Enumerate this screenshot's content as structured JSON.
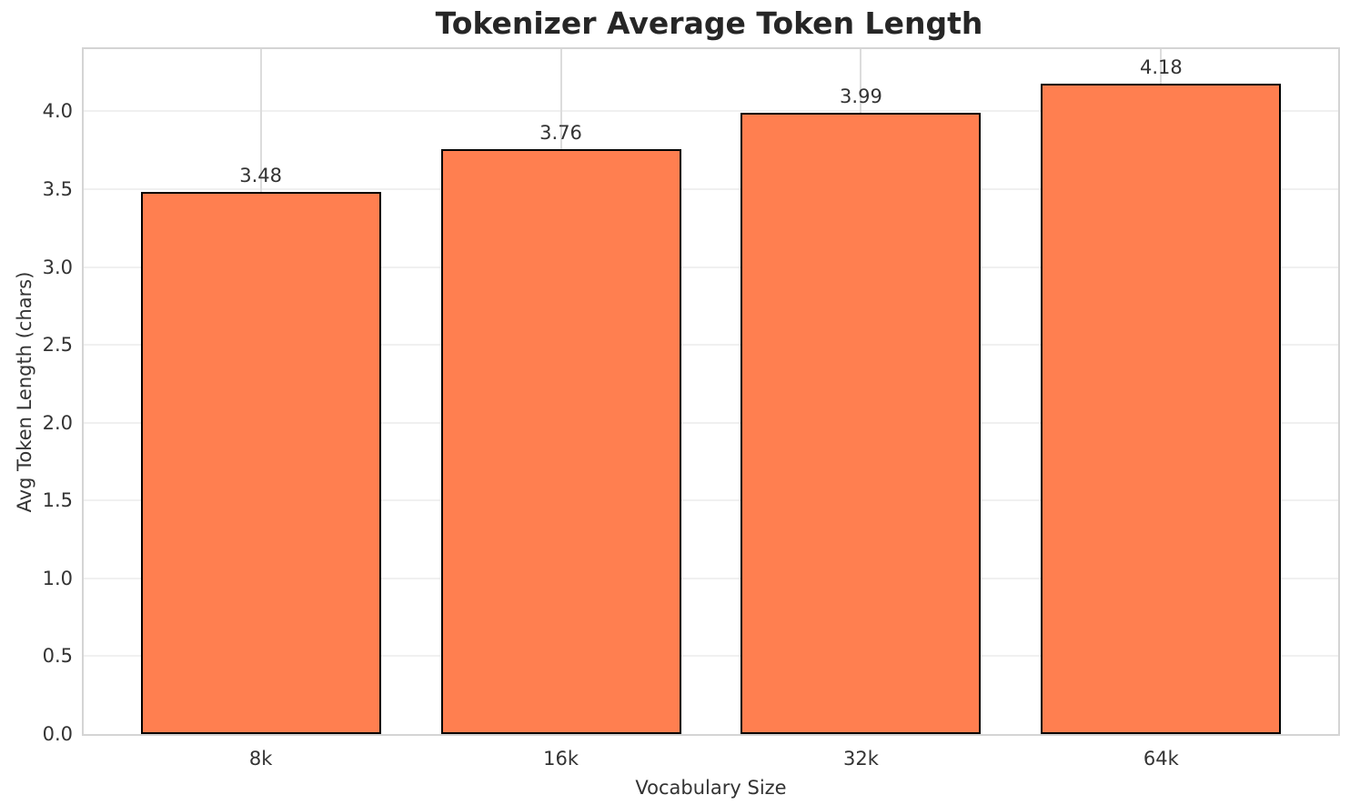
{
  "chart_data": {
    "type": "bar",
    "title": "Tokenizer Average Token Length",
    "categories": [
      "8k",
      "16k",
      "32k",
      "64k"
    ],
    "values": [
      3.48,
      3.76,
      3.99,
      4.18
    ],
    "value_labels": [
      "3.48",
      "3.76",
      "3.99",
      "4.18"
    ],
    "xlabel": "Vocabulary Size",
    "ylabel": "Avg Token Length (chars)",
    "xlim": [
      -0.59,
      3.59
    ],
    "ylim": [
      0,
      4.4
    ],
    "yticks": [
      0,
      0.5,
      1,
      1.5,
      2,
      2.5,
      3,
      3.5,
      4
    ],
    "ytick_labels": [
      "0.0",
      "0.5",
      "1.0",
      "1.5",
      "2.0",
      "2.5",
      "3.0",
      "3.5",
      "4.0"
    ],
    "bar_width": 0.8,
    "bar_color": "#FF7F50",
    "bar_edge_color": "#000000",
    "grid": "both",
    "legend": "none",
    "background_color": "#ffffff",
    "spine_color": "#d4d4d4",
    "hgrid_color": "#f0f0f0",
    "vgrid_color": "#dcdcdc",
    "text_color": "#333333",
    "title_color": "#262626"
  }
}
